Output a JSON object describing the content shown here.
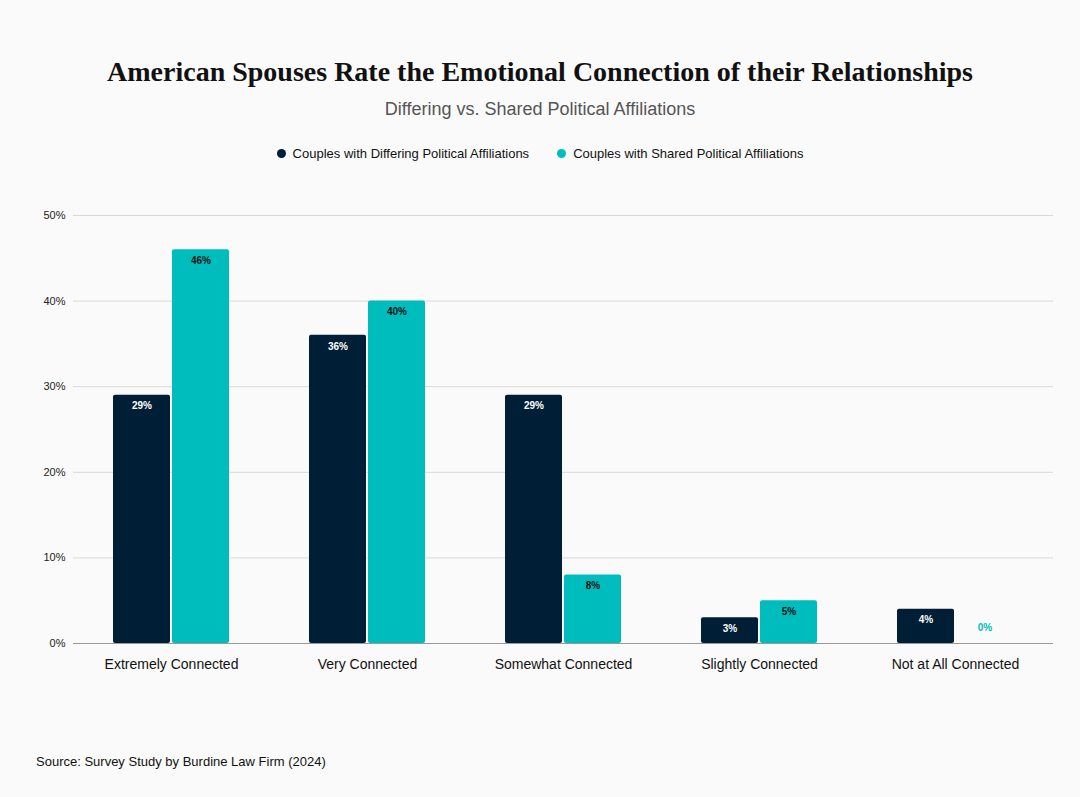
{
  "chart_data": {
    "type": "bar",
    "title": "American Spouses Rate the Emotional Connection of their Relationships",
    "subtitle": "Differing vs. Shared Political Affiliations",
    "caption": "Source: Survey Study by Burdine Law Firm (2024)",
    "categories": [
      "Extremely Connected",
      "Very Connected",
      "Somewhat Connected",
      "Slightly Connected",
      "Not at All Connected"
    ],
    "series": [
      {
        "name": "Couples with Differing Political Affiliations",
        "color": "#001e36",
        "values": [
          29,
          36,
          29,
          3,
          4
        ],
        "value_labels": [
          "29%",
          "36%",
          "29%",
          "3%",
          "4%"
        ]
      },
      {
        "name": "Couples with Shared Political Affiliations",
        "color": "#00bdbd",
        "values": [
          46,
          40,
          8,
          5,
          0
        ],
        "value_labels": [
          "46%",
          "40%",
          "8%",
          "5%",
          "0%"
        ]
      }
    ],
    "ylim": [
      0,
      50
    ],
    "yticks": [
      {
        "value": 0,
        "label": "0%"
      },
      {
        "value": 10,
        "label": "10%"
      },
      {
        "value": 20,
        "label": "20%"
      },
      {
        "value": 30,
        "label": "30%"
      },
      {
        "value": 40,
        "label": "40%"
      },
      {
        "value": 50,
        "label": "50%"
      }
    ],
    "grid": true,
    "data_labels": true,
    "legend": "top"
  }
}
